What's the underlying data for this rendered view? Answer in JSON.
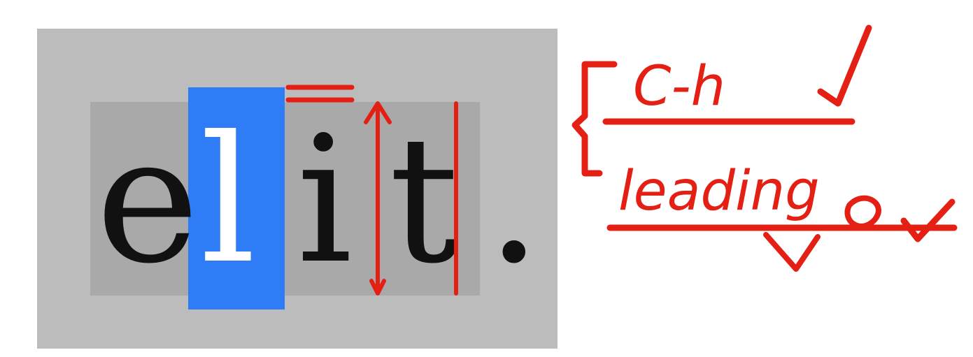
{
  "sample_text": {
    "e": "e",
    "l": "l",
    "i": "i",
    "t": "t",
    "dot": "."
  },
  "annotations": {
    "top_label": "C-h",
    "bottom_label": "leading"
  },
  "colors": {
    "selection": "#2f7df6",
    "outer_panel": "#bcbcbc",
    "text_box": "#a9a9a9",
    "annotation_ink": "#e41f13"
  }
}
